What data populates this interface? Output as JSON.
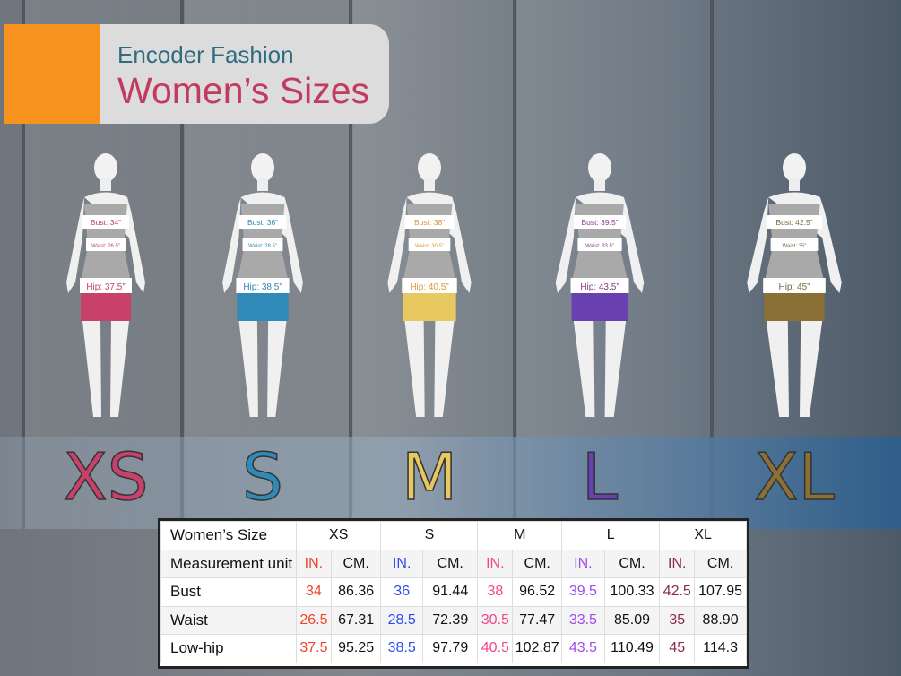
{
  "header": {
    "brand": "Encoder Fashion",
    "title": "Women’s Sizes"
  },
  "sizes": [
    {
      "label": "XS",
      "color": "#c8416a",
      "label_color": "#c2406a",
      "bust": "Bust: 34”",
      "waist": "Waist: 26.5”",
      "hip": "Hip: 37.5”"
    },
    {
      "label": "S",
      "color": "#2f8ab8",
      "label_color": "#2f86b0",
      "bust": "Bust: 36”",
      "waist": "Waist: 28.5”",
      "hip": "Hip: 38.5”"
    },
    {
      "label": "M",
      "color": "#e8c860",
      "label_color": "#d9963a",
      "bust": "Bust: 38”",
      "waist": "Waist: 30.5”",
      "hip": "Hip: 40.5”"
    },
    {
      "label": "L",
      "color": "#6a3fb0",
      "label_color": "#8a3a8e",
      "bust": "Bust: 39.5”",
      "waist": "Waist: 33.5”",
      "hip": "Hip: 43.5”"
    },
    {
      "label": "XL",
      "color": "#8a7035",
      "label_color": "#7a6840",
      "bust": "Bust: 42.5”",
      "waist": "Waist: 35”",
      "hip": "Hip: 45”"
    }
  ],
  "table": {
    "corner": "Women’s Size",
    "unit_label": "Measurement unit",
    "in_label": "IN.",
    "cm_label": "CM.",
    "in_colors": [
      "#f0442c",
      "#2a4cf0",
      "#f0488a",
      "#9a4cf0",
      "#8a2a50"
    ],
    "sizes": [
      "XS",
      "S",
      "M",
      "L",
      "XL"
    ],
    "rows": [
      {
        "label": "Bust",
        "values": [
          "34",
          "86.36",
          "36",
          "91.44",
          "38",
          "96.52",
          "39.5",
          "100.33",
          "42.5",
          "107.95"
        ]
      },
      {
        "label": "Waist",
        "values": [
          "26.5",
          "67.31",
          "28.5",
          "72.39",
          "30.5",
          "77.47",
          "33.5",
          "85.09",
          "35",
          "88.90"
        ]
      },
      {
        "label": "Low-hip",
        "values": [
          "37.5",
          "95.25",
          "38.5",
          "97.79",
          "40.5",
          "102.87",
          "43.5",
          "110.49",
          "45",
          "114.3"
        ]
      }
    ]
  }
}
